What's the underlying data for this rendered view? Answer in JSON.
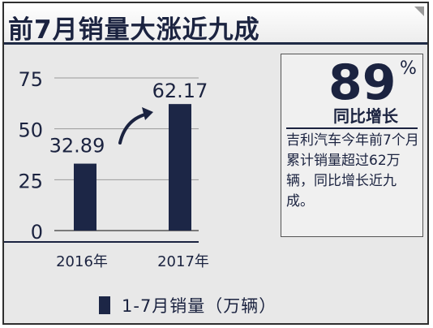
{
  "title": "前7月销量大涨近九成",
  "highlight": {
    "value": "89",
    "unit": "%",
    "caption": "同比增长",
    "description": "吉利汽车今年前7个月累计销量超过62万辆，同比增长近九成。"
  },
  "colors": {
    "bar": "#1c2646",
    "text": "#1b2340",
    "background": "#e8e8e8"
  },
  "chart_data": {
    "type": "bar",
    "title": "",
    "categories": [
      "2016年",
      "2017年"
    ],
    "series": [
      {
        "name": "1-7月销量（万辆）",
        "values": [
          32.89,
          62.17
        ]
      }
    ],
    "value_labels": [
      "32.89",
      "62.17"
    ],
    "yticks": [
      "0",
      "25",
      "50",
      "75"
    ],
    "ylim": [
      0,
      80
    ],
    "grid": true,
    "legend": "bottom",
    "annotation": "arrow from 2016 value to 2017 value"
  }
}
